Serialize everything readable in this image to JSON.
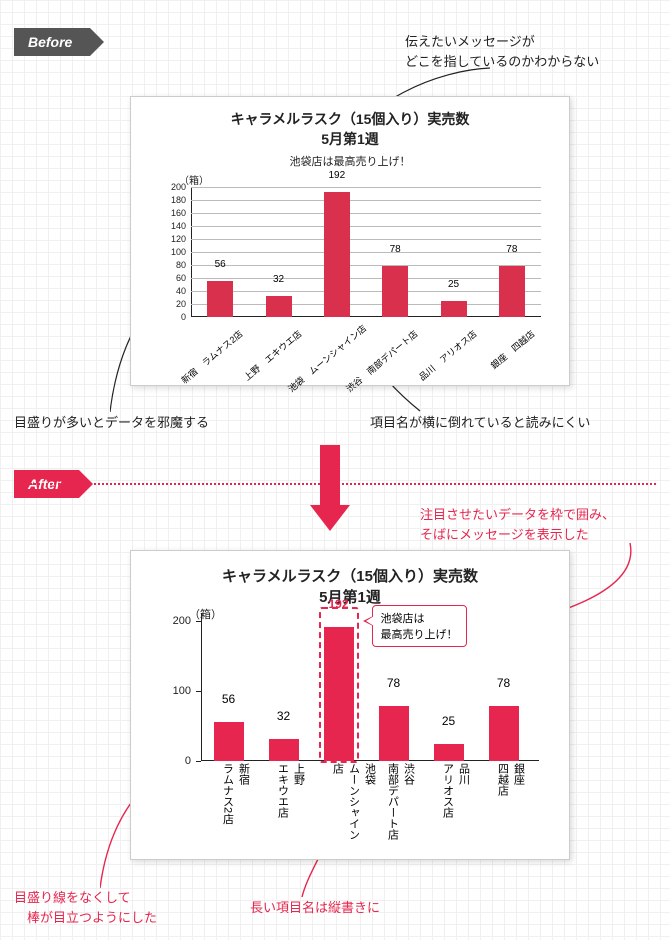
{
  "tags": {
    "before": "Before",
    "after": "After"
  },
  "annotations": {
    "a1": "伝えたいメッセージが\nどこを指しているのかわからない",
    "a2": "目盛りが多いとデータを邪魔する",
    "a3": "項目名が横に倒れていると読みにくい",
    "a4": "注目させたいデータを枠で囲み、\nそばにメッセージを表示した",
    "a5": "目盛り線をなくして\n　棒が目立つようにした",
    "a6": "長い項目名は縦書きに"
  },
  "before_chart": {
    "type": "bar",
    "title": "キャラメルラスク（15個入り）実売数",
    "subtitle": "5月第1週",
    "note": "池袋店は最高売り上げ！",
    "unit": "（箱）",
    "categories": [
      "新宿　ラムナス2店",
      "上野　エキウエ店",
      "池袋　ムーンシャイン店",
      "渋谷　南部デパート店",
      "品川　アリオス店",
      "銀座　四越店"
    ],
    "values": [
      56,
      32,
      192,
      78,
      25,
      78
    ],
    "bar_color": "#d9304e",
    "ylim": [
      0,
      200
    ],
    "ytick_step": 20,
    "grid_color": "#bbbbbb",
    "label_fontsize": 9,
    "value_fontsize": 10,
    "title_fontsize": 14,
    "x_label_rotation_deg": -40
  },
  "after_chart": {
    "type": "bar",
    "title": "キャラメルラスク（15個入り）実売数",
    "subtitle": "5月第1週",
    "unit": "（箱）",
    "categories": [
      "新宿\nラムナス2店",
      "上野\nエキウエ店",
      "池袋\nムーンシャイン店",
      "渋谷\n南部デパート店",
      "品川\nアリオス店",
      "銀座\n四越店"
    ],
    "values": [
      56,
      32,
      192,
      78,
      25,
      78
    ],
    "bar_color": "#e6264e",
    "ylim": [
      0,
      200
    ],
    "ytick_step": 100,
    "highlight_index": 2,
    "highlight_box_color": "#e6264e",
    "callout_text": "池袋店は\n最高売り上げ！",
    "label_fontsize": 11,
    "value_fontsize": 12,
    "title_fontsize": 15,
    "x_label_writing_mode": "vertical-rl"
  },
  "colors": {
    "accent": "#e6264e",
    "text": "#222222",
    "grid_bg": "#f0f0f0",
    "before_tag": "#555555"
  }
}
